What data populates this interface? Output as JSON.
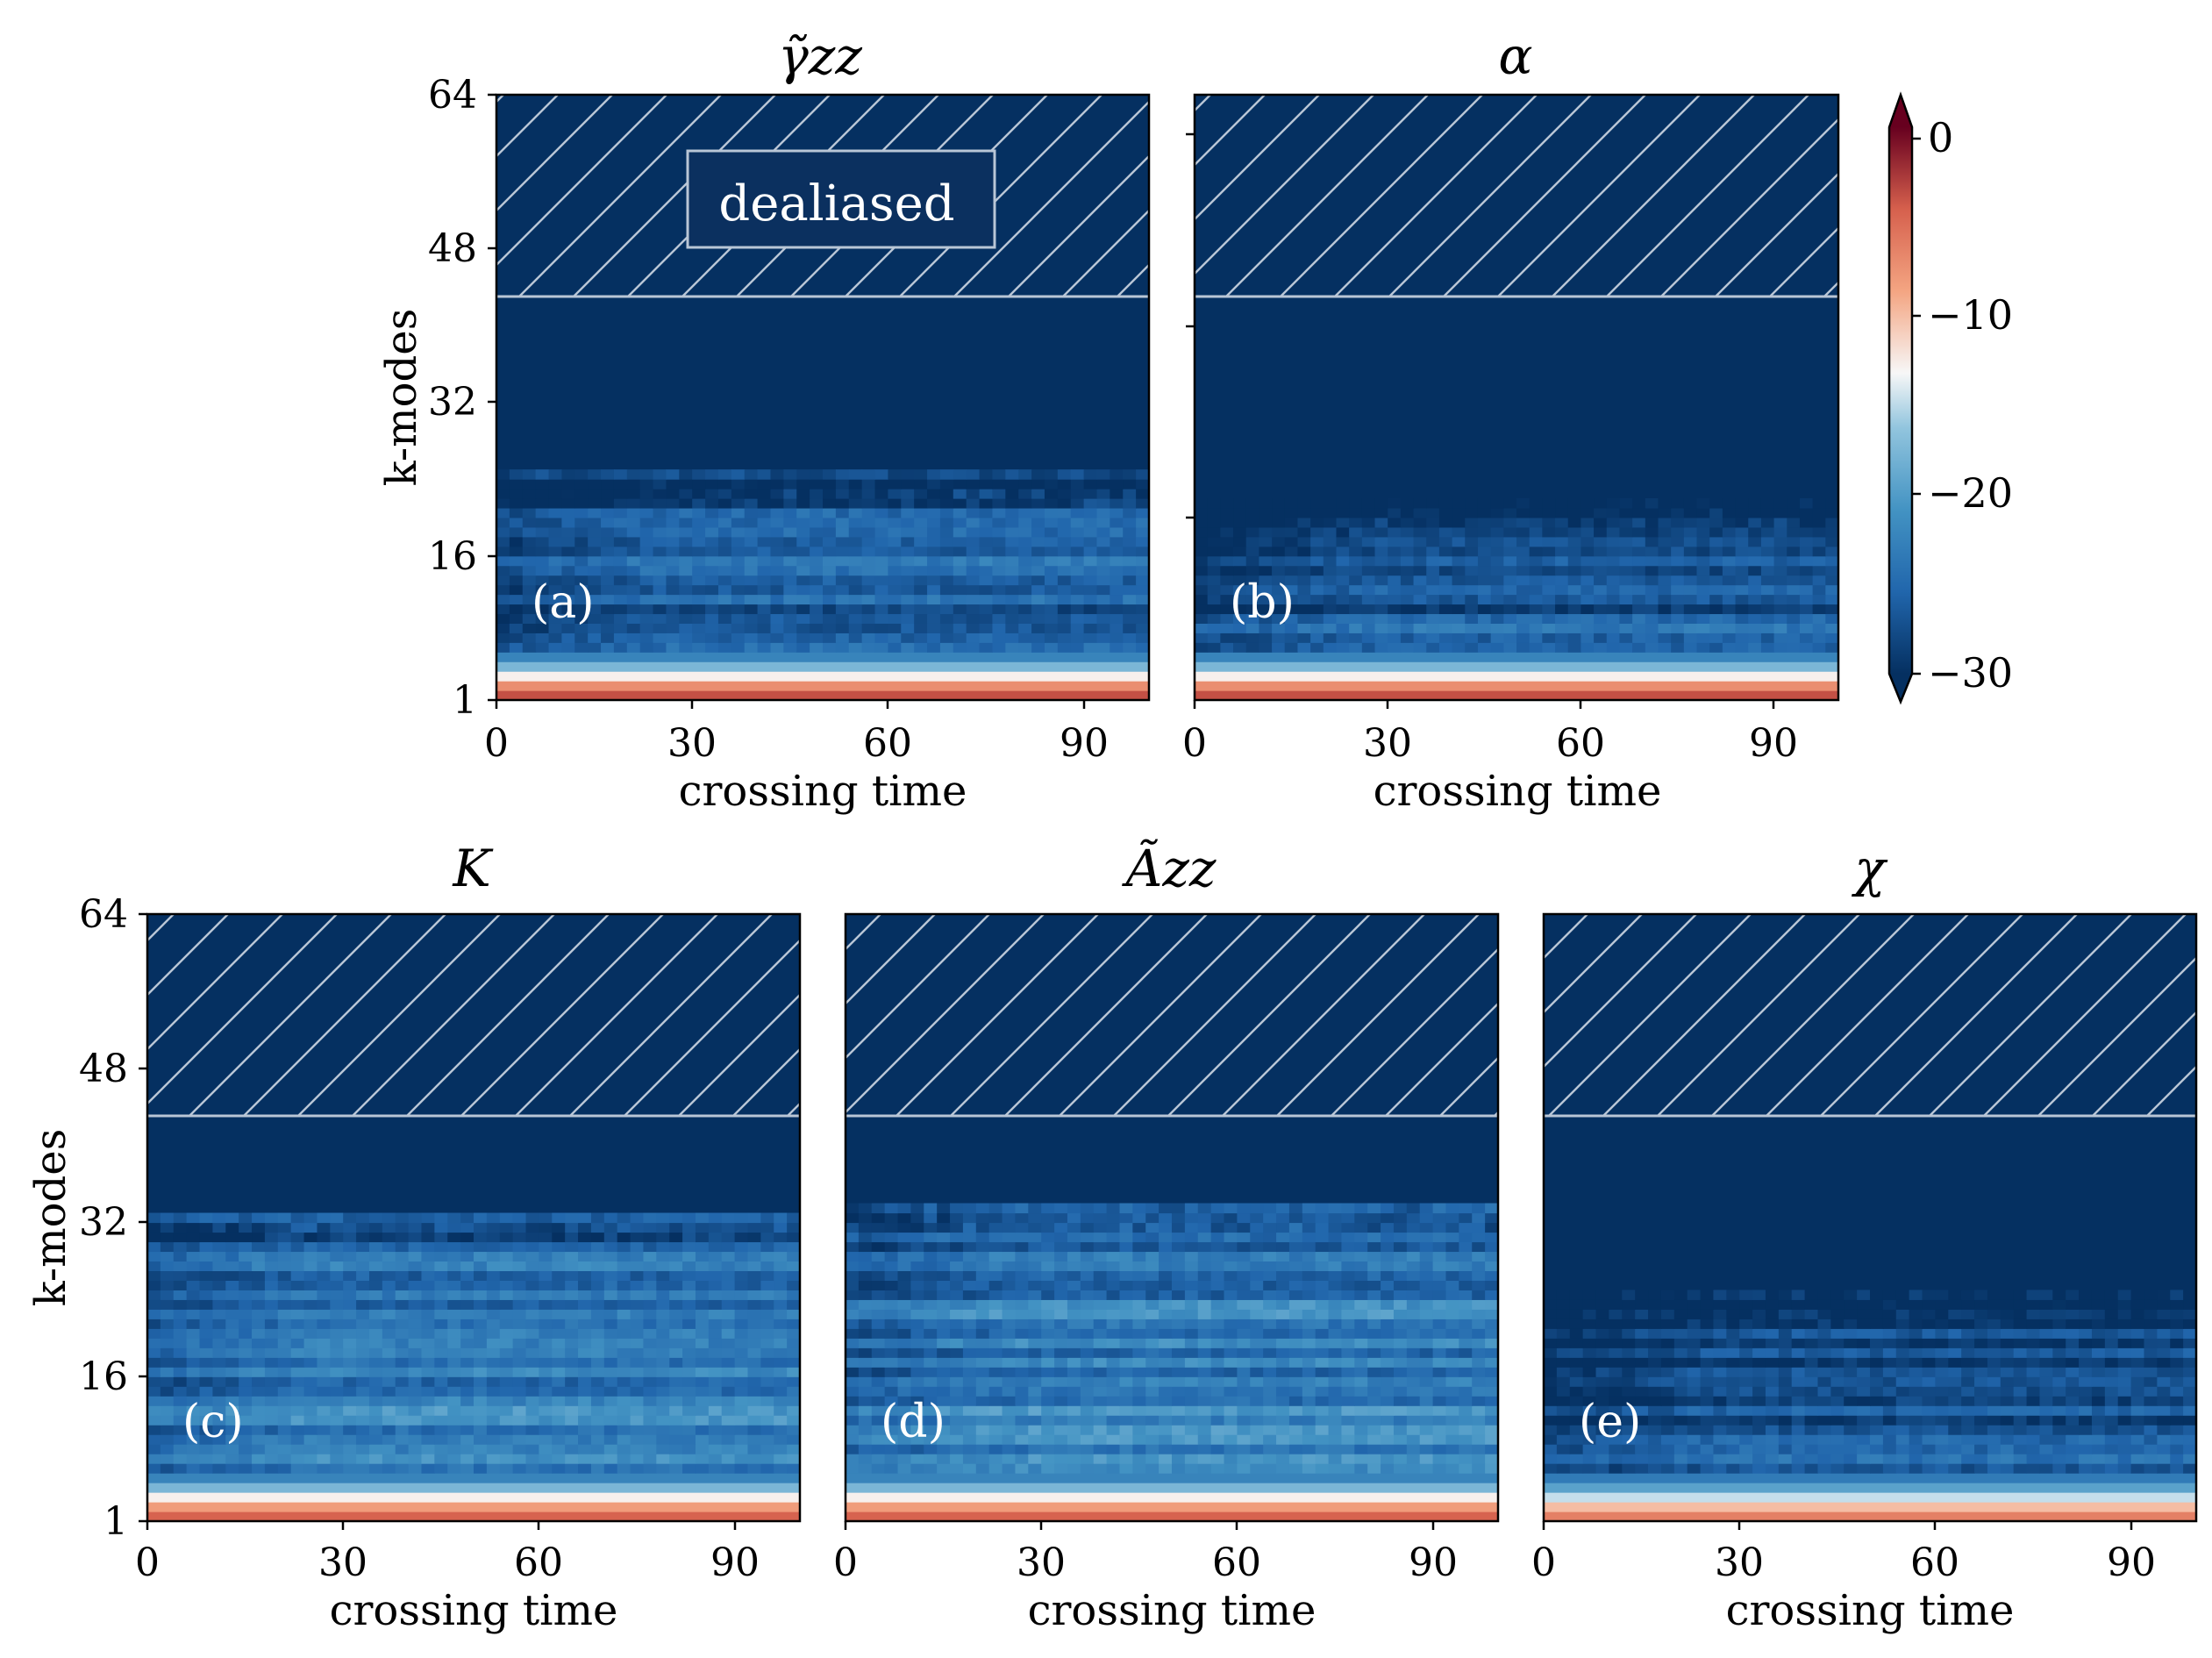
{
  "chart_data": {
    "type": "heatmap",
    "colorbar": {
      "ticks": [
        0,
        -10,
        -20,
        -30
      ],
      "tick_labels": [
        "0",
        "−10",
        "−20",
        "−30"
      ],
      "range": [
        -30,
        2
      ],
      "colormap": "RdBu_r",
      "extend": "both"
    },
    "shared_axes": {
      "xlabel": "crossing time",
      "ylabel": "k-modes",
      "xticks": [
        0,
        30,
        60,
        90
      ],
      "xtick_labels": [
        "0",
        "30",
        "60",
        "90"
      ],
      "yticks": [
        1,
        16,
        32,
        48,
        64
      ],
      "ytick_labels": [
        "1",
        "16",
        "32",
        "48",
        "64"
      ],
      "xlim": [
        0,
        100
      ],
      "ylim": [
        1,
        64
      ],
      "dealias_cutoff": 43
    },
    "annotation": "dealiased",
    "panels": [
      {
        "id": "a",
        "title": "γ̃zz",
        "letter": "(a)",
        "noise_top": 24,
        "mid_level": -24,
        "low_modes": [
          -2,
          -6,
          -12,
          -17,
          -22
        ]
      },
      {
        "id": "b",
        "title": "α",
        "letter": "(b)",
        "noise_top": 21,
        "mid_level": -25,
        "low_modes": [
          -2,
          -6,
          -12,
          -17,
          -22
        ]
      },
      {
        "id": "c",
        "title": "K",
        "letter": "(c)",
        "noise_top": 32,
        "mid_level": -22,
        "low_modes": [
          -3,
          -7,
          -12,
          -17,
          -22
        ]
      },
      {
        "id": "d",
        "title": "Ãzz",
        "letter": "(d)",
        "noise_top": 33,
        "mid_level": -21,
        "low_modes": [
          -3,
          -7,
          -12,
          -17,
          -22
        ]
      },
      {
        "id": "e",
        "title": "χ",
        "letter": "(e)",
        "noise_top": 24,
        "mid_level": -26,
        "low_modes": [
          -5,
          -9,
          -14,
          -19,
          -23
        ]
      }
    ]
  }
}
